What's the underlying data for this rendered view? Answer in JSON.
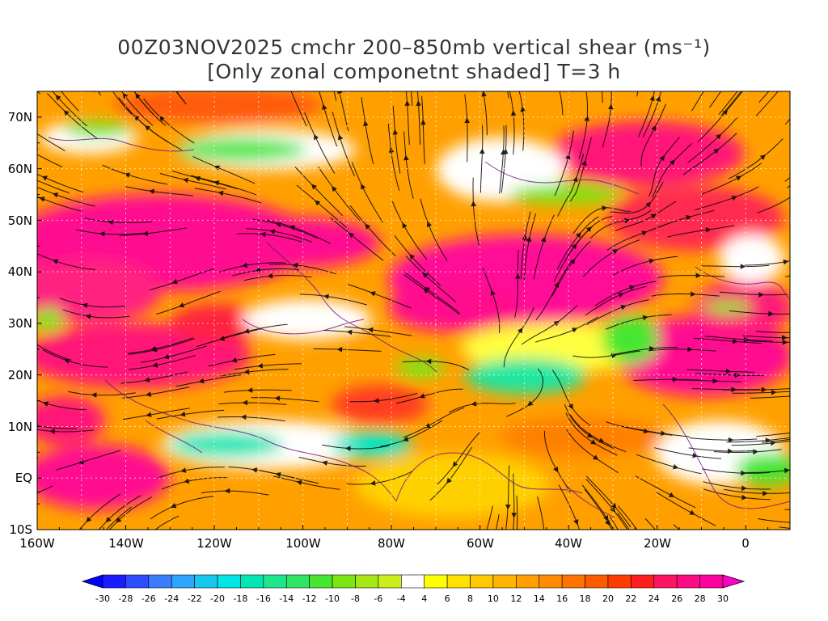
{
  "title": {
    "line1": "00Z03NOV2025 cmchr 200–850mb vertical shear (ms⁻¹)",
    "line2": "[Only zonal componetnt shaded] T=3 h"
  },
  "map": {
    "lat_labels": [
      "70N",
      "60N",
      "50N",
      "40N",
      "30N",
      "20N",
      "10N",
      "EQ",
      "10S"
    ],
    "lon_labels": [
      "160W",
      "140W",
      "120W",
      "100W",
      "80W",
      "60W",
      "40W",
      "20W",
      "0"
    ],
    "lat_range": [
      -10,
      75
    ],
    "lon_range": [
      -160,
      10
    ],
    "field": "200–850mb zonal vertical shear with streamlines"
  },
  "colorbar": {
    "labels": [
      "-30",
      "-28",
      "-26",
      "-24",
      "-22",
      "-20",
      "-18",
      "-16",
      "-14",
      "-12",
      "-10",
      "-8",
      "-6",
      "-4",
      "4",
      "6",
      "8",
      "10",
      "12",
      "14",
      "16",
      "18",
      "20",
      "22",
      "24",
      "26",
      "28",
      "30"
    ],
    "colors": [
      "#1b1bff",
      "#2e4cff",
      "#3c7cff",
      "#2ea6ff",
      "#14c8f0",
      "#00e6e6",
      "#00e6b4",
      "#1ee68c",
      "#2ee664",
      "#46e632",
      "#7ce614",
      "#a6e614",
      "#cdee1a",
      "#ffffff",
      "#ffff00",
      "#ffe100",
      "#ffc800",
      "#ffb400",
      "#ffa000",
      "#ff8c00",
      "#ff7300",
      "#ff5a00",
      "#ff3c00",
      "#ff1e1e",
      "#ff1464",
      "#ff0a82",
      "#ff00a0"
    ],
    "left_arrow_color": "#0000ff",
    "right_arrow_color": "#ff00c8"
  }
}
